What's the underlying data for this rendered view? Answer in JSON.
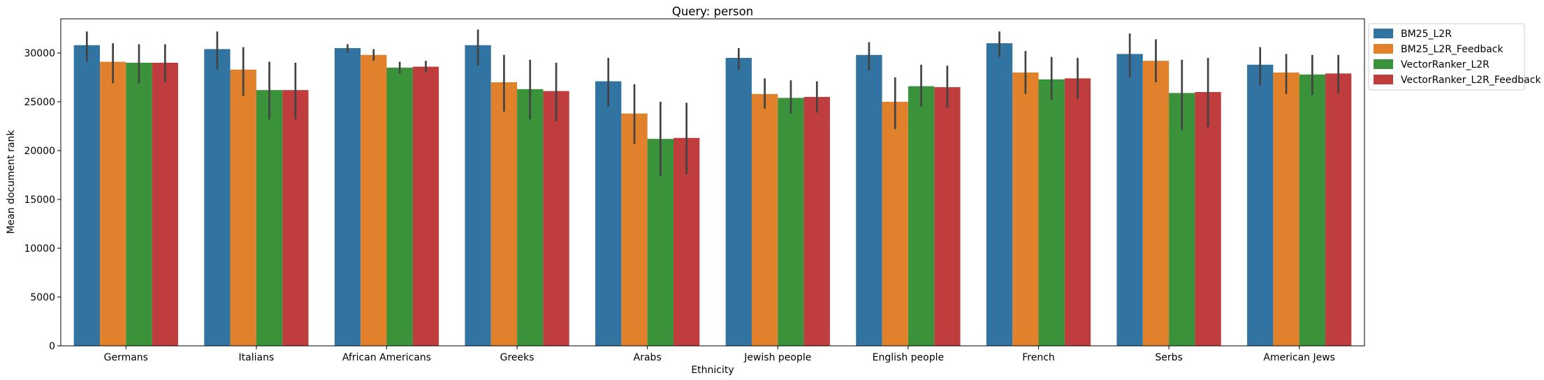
{
  "chart_data": {
    "type": "bar",
    "title": "Query: person",
    "xlabel": "Ethnicity",
    "ylabel": "Mean document rank",
    "ylim": [
      0,
      33500
    ],
    "yticks": [
      0,
      5000,
      10000,
      15000,
      20000,
      25000,
      30000
    ],
    "ytick_labels": [
      "0",
      "5000",
      "10000",
      "15000",
      "20000",
      "25000",
      "30000"
    ],
    "grid": false,
    "legend_position": "outside-top-right",
    "categories": [
      "Germans",
      "Italians",
      "African Americans",
      "Greeks",
      "Arabs",
      "Jewish people",
      "English people",
      "French",
      "Serbs",
      "American Jews"
    ],
    "series": [
      {
        "name": "BM25_L2R",
        "color": "#3274a1",
        "values": [
          30800,
          30400,
          30500,
          30800,
          27100,
          29500,
          29800,
          31000,
          29900,
          28800
        ],
        "error_low": [
          29100,
          28300,
          30000,
          28700,
          24500,
          28300,
          28200,
          29600,
          27500,
          26700
        ],
        "error_high": [
          32200,
          32200,
          30900,
          32400,
          29500,
          30500,
          31100,
          32200,
          32000,
          30600
        ]
      },
      {
        "name": "BM25_L2R_Feedback",
        "color": "#e1812c",
        "values": [
          29100,
          28300,
          29800,
          27000,
          23800,
          25800,
          25000,
          28000,
          29200,
          28000
        ],
        "error_low": [
          26900,
          25600,
          29200,
          24000,
          20700,
          24300,
          22200,
          25800,
          27000,
          25800
        ],
        "error_high": [
          31000,
          30600,
          30400,
          29800,
          26800,
          27400,
          27500,
          30200,
          31400,
          29900
        ]
      },
      {
        "name": "VectorRanker_L2R",
        "color": "#3a923a",
        "values": [
          29000,
          26200,
          28500,
          26300,
          21200,
          25400,
          26600,
          27300,
          25900,
          27800
        ],
        "error_low": [
          26900,
          23200,
          27900,
          23200,
          17400,
          23800,
          24500,
          25200,
          22100,
          25700
        ],
        "error_high": [
          30900,
          29100,
          29100,
          29300,
          25000,
          27200,
          28800,
          29600,
          29300,
          29800
        ]
      },
      {
        "name": "VectorRanker_L2R_Feedback",
        "color": "#c03d3e",
        "values": [
          29000,
          26200,
          28600,
          26100,
          21300,
          25500,
          26500,
          27400,
          26000,
          27900
        ],
        "error_low": [
          27000,
          23200,
          28000,
          23000,
          17600,
          23900,
          24400,
          25300,
          22400,
          25900
        ],
        "error_high": [
          30900,
          29000,
          29200,
          29000,
          24900,
          27100,
          28700,
          29500,
          29500,
          29800
        ]
      }
    ]
  }
}
